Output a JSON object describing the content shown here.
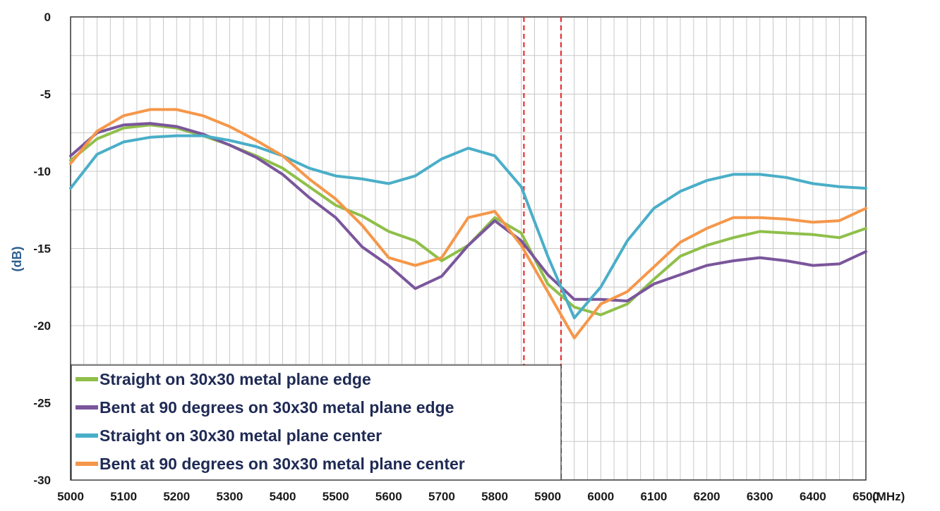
{
  "chart_data": {
    "type": "line",
    "xlabel": "(MHz)",
    "ylabel": "(dB)",
    "xlim": [
      5000,
      6500
    ],
    "ylim": [
      -30,
      0
    ],
    "x_ticks": [
      5000,
      5100,
      5200,
      5300,
      5400,
      5500,
      5600,
      5700,
      5800,
      5900,
      6000,
      6100,
      6200,
      6300,
      6400,
      6500
    ],
    "y_ticks": [
      0,
      -5,
      -10,
      -15,
      -20,
      -25,
      -30
    ],
    "grid": true,
    "legend_position": "bottom-left",
    "markers": [
      {
        "x": 5855,
        "color": "#e8302e",
        "style": "dashed"
      },
      {
        "x": 5925,
        "color": "#e8302e",
        "style": "dashed"
      }
    ],
    "series": [
      {
        "name": "Straight on 30x30 metal plane edge",
        "color": "#8fbf4a",
        "x": [
          5000,
          5050,
          5100,
          5150,
          5200,
          5250,
          5300,
          5350,
          5400,
          5450,
          5500,
          5550,
          5600,
          5650,
          5700,
          5750,
          5800,
          5850,
          5900,
          5950,
          6000,
          6050,
          6100,
          6150,
          6200,
          6250,
          6300,
          6350,
          6400,
          6450,
          6500
        ],
        "y": [
          -9.3,
          -7.9,
          -7.2,
          -7.0,
          -7.2,
          -7.7,
          -8.3,
          -9.0,
          -9.8,
          -11.0,
          -12.2,
          -12.9,
          -13.9,
          -14.5,
          -15.8,
          -14.8,
          -13.0,
          -14.0,
          -17.3,
          -18.8,
          -19.3,
          -18.6,
          -17.0,
          -15.5,
          -14.8,
          -14.3,
          -13.9,
          -14.0,
          -14.1,
          -14.3,
          -13.7
        ]
      },
      {
        "name": "Bent at 90 degrees on 30x30 metal plane edge",
        "color": "#7a569c",
        "x": [
          5000,
          5050,
          5100,
          5150,
          5200,
          5250,
          5300,
          5350,
          5400,
          5450,
          5500,
          5550,
          5600,
          5650,
          5700,
          5750,
          5800,
          5850,
          5900,
          5950,
          6000,
          6050,
          6100,
          6150,
          6200,
          6250,
          6300,
          6350,
          6400,
          6450,
          6500
        ],
        "y": [
          -9.0,
          -7.5,
          -7.0,
          -6.9,
          -7.1,
          -7.6,
          -8.3,
          -9.1,
          -10.2,
          -11.7,
          -13.0,
          -14.9,
          -16.1,
          -17.6,
          -16.8,
          -14.8,
          -13.2,
          -14.5,
          -16.7,
          -18.3,
          -18.3,
          -18.4,
          -17.3,
          -16.7,
          -16.1,
          -15.8,
          -15.6,
          -15.8,
          -16.1,
          -16.0,
          -15.2
        ]
      },
      {
        "name": "Straight on 30x30 metal plane center",
        "color": "#4aaec8",
        "x": [
          5000,
          5050,
          5100,
          5150,
          5200,
          5250,
          5300,
          5350,
          5400,
          5450,
          5500,
          5550,
          5600,
          5650,
          5700,
          5750,
          5800,
          5850,
          5900,
          5950,
          6000,
          6050,
          6100,
          6150,
          6200,
          6250,
          6300,
          6350,
          6400,
          6450,
          6500
        ],
        "y": [
          -11.1,
          -8.9,
          -8.1,
          -7.8,
          -7.7,
          -7.7,
          -8.0,
          -8.4,
          -9.0,
          -9.8,
          -10.3,
          -10.5,
          -10.8,
          -10.3,
          -9.2,
          -8.5,
          -9.0,
          -11.0,
          -15.5,
          -19.5,
          -17.5,
          -14.5,
          -12.4,
          -11.3,
          -10.6,
          -10.2,
          -10.2,
          -10.4,
          -10.8,
          -11.0,
          -11.1
        ]
      },
      {
        "name": "Bent at 90 degrees on 30x30 metal plane center",
        "color": "#f5974a",
        "x": [
          5000,
          5050,
          5100,
          5150,
          5200,
          5250,
          5300,
          5350,
          5400,
          5450,
          5500,
          5550,
          5600,
          5650,
          5700,
          5750,
          5800,
          5850,
          5900,
          5950,
          6000,
          6050,
          6100,
          6150,
          6200,
          6250,
          6300,
          6350,
          6400,
          6450,
          6500
        ],
        "y": [
          -9.5,
          -7.4,
          -6.4,
          -6.0,
          -6.0,
          -6.4,
          -7.1,
          -8.0,
          -9.0,
          -10.5,
          -11.8,
          -13.5,
          -15.6,
          -16.1,
          -15.6,
          -13.0,
          -12.6,
          -14.8,
          -17.8,
          -20.8,
          -18.6,
          -17.8,
          -16.2,
          -14.6,
          -13.7,
          -13.0,
          -13.0,
          -13.1,
          -13.3,
          -13.2,
          -12.4
        ]
      }
    ]
  }
}
